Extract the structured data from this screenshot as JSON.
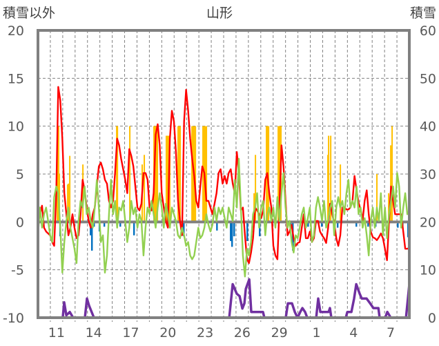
{
  "chart_data": {
    "type": "line",
    "title": "山形",
    "left_axis_label": "積雪以外",
    "right_axis_label": "積雪",
    "ylim_left": [
      -10,
      20
    ],
    "ylim_right": [
      0,
      60
    ],
    "left_ticks": [
      "20",
      "15",
      "10",
      "5",
      "0",
      "-5",
      "-10"
    ],
    "right_ticks": [
      "60",
      "50",
      "40",
      "30",
      "20",
      "10",
      "0"
    ],
    "days": 30,
    "x_tick_labels": [
      {
        "day_index": 1,
        "label": "11"
      },
      {
        "day_index": 4,
        "label": "14"
      },
      {
        "day_index": 7,
        "label": "17"
      },
      {
        "day_index": 10,
        "label": "20"
      },
      {
        "day_index": 13,
        "label": "23"
      },
      {
        "day_index": 16,
        "label": "26"
      },
      {
        "day_index": 19,
        "label": "29"
      },
      {
        "day_index": 22,
        "label": "1"
      },
      {
        "day_index": 25,
        "label": "4"
      },
      {
        "day_index": 28,
        "label": "7"
      }
    ],
    "grid": true,
    "colors": {
      "red": "#ff0000",
      "green": "#92d050",
      "purple": "#7030a0",
      "yellow": "#ffc000",
      "blue": "#0070c0",
      "axis": "#808080"
    },
    "red_series": [
      1.5,
      0.8,
      1.7,
      -0.6,
      -1.0,
      -1.2,
      -1.4,
      -2.1,
      -2.5,
      3.0,
      14.1,
      12.7,
      8.7,
      3.0,
      0.8,
      -1.4,
      -0.6,
      0.8,
      -0.6,
      -1.7,
      -1.4,
      0.8,
      4.4,
      3.3,
      1.5,
      0.1,
      -0.6,
      0.8,
      1.5,
      3.7,
      5.8,
      6.2,
      5.5,
      4.4,
      4.0,
      2.2,
      1.5,
      2.2,
      5.1,
      8.7,
      8.0,
      6.6,
      5.5,
      4.4,
      3.0,
      7.6,
      6.9,
      5.8,
      3.7,
      1.5,
      1.2,
      1.9,
      5.1,
      5.1,
      4.4,
      1.5,
      1.2,
      3.0,
      9.1,
      10.2,
      8.0,
      3.0,
      1.5,
      0.1,
      -0.6,
      8.7,
      11.6,
      10.5,
      7.3,
      2.2,
      0.1,
      -1.4,
      10.5,
      13.8,
      11.6,
      8.7,
      6.6,
      4.8,
      2.2,
      1.5,
      3.7,
      5.8,
      5.1,
      2.2,
      2.2,
      1.5,
      0.8,
      1.9,
      3.0,
      5.1,
      5.5,
      4.0,
      4.8,
      4.0,
      5.1,
      5.5,
      4.0,
      3.0,
      7.3,
      5.1,
      1.2,
      1.5,
      -1.4,
      -3.9,
      -4.3,
      -3.2,
      -1.7,
      1.5,
      1.2,
      0.8,
      0.4,
      1.2,
      4.4,
      5.1,
      3.0,
      1.5,
      -2.5,
      -3.5,
      -3.9,
      1.5,
      8.0,
      5.8,
      2.2,
      -1.4,
      -1.0,
      -0.3,
      -1.7,
      -2.5,
      -2.2,
      -2.1,
      -0.6,
      0.8,
      -1.7,
      -1.7,
      -1.0,
      -2.1,
      -1.7,
      0.1,
      0.1,
      -1.0,
      -1.4,
      -1.7,
      -2.2,
      -0.6,
      1.9,
      0.8,
      -0.1,
      -1.7,
      -2.5,
      -1.4,
      1.5,
      1.5,
      1.3,
      1.3,
      1.5,
      2.2,
      4.8,
      3.3,
      2.0,
      1.3,
      0.2,
      2.2,
      3.3,
      0.8,
      -1.0,
      -1.6,
      -1.7,
      -1.9,
      -1.6,
      -1.2,
      -1.7,
      -2.8,
      -4.0,
      0.1,
      3.7,
      2.2,
      0.8,
      0.8,
      0.8,
      0.8,
      -1.0,
      -2.8,
      -2.8,
      -2.7
    ],
    "green_series": [
      -1.4,
      1.5,
      -0.6,
      0.8,
      1.5,
      0.1,
      -1.4,
      -2.1,
      2.6,
      3.7,
      3.0,
      -0.6,
      -5.3,
      -2.1,
      0.1,
      1.5,
      -0.6,
      -1.7,
      -2.8,
      -4.3,
      0.1,
      2.2,
      1.5,
      3.7,
      0.8,
      1.5,
      0.1,
      -0.6,
      1.5,
      4.4,
      1.5,
      -2.1,
      -1.4,
      -5.3,
      -3.5,
      0.8,
      4.4,
      0.8,
      2.2,
      -0.6,
      1.5,
      1.2,
      2.2,
      0.1,
      -2.1,
      -0.6,
      2.2,
      0.8,
      1.5,
      -0.6,
      0.8,
      0.1,
      -3.5,
      -0.6,
      1.5,
      0.8,
      2.2,
      0.8,
      -0.6,
      1.5,
      3.0,
      1.5,
      -0.6,
      1.9,
      0.8,
      -0.6,
      1.5,
      0.8,
      0.1,
      -1.4,
      -1.7,
      -0.6,
      -1.4,
      -2.5,
      -2.1,
      -3.5,
      -3.9,
      -3.5,
      -2.1,
      -0.6,
      -1.7,
      -1.4,
      -0.6,
      0.8,
      -0.3,
      -1.0,
      -0.3,
      1.5,
      0.1,
      1.5,
      0.8,
      1.5,
      0.4,
      -0.6,
      1.5,
      0.8,
      0.1,
      4.4,
      1.5,
      6.6,
      1.5,
      -3.5,
      -5.7,
      -2.8,
      -3.5,
      -2.1,
      0.8,
      1.5,
      3.0,
      -0.6,
      1.5,
      2.2,
      -1.4,
      0.8,
      1.5,
      0.1,
      1.5,
      -0.6,
      2.6,
      0.1,
      3.0,
      5.1,
      1.5,
      -0.6,
      0.1,
      -2.1,
      -3.2,
      -1.4,
      -1.7,
      -0.6,
      0.8,
      1.5,
      -0.6,
      0.4,
      1.5,
      -2.1,
      -1.4,
      1.5,
      2.6,
      1.5,
      0.1,
      2.2,
      -0.6,
      0.1,
      1.5,
      2.2,
      -1.4,
      1.5,
      2.6,
      1.5,
      2.2,
      0.8,
      3.0,
      4.4,
      1.5,
      2.2,
      1.5,
      3.7,
      0.8,
      1.5,
      -0.6,
      0.4,
      -1.4,
      -3.5,
      0.1,
      1.5,
      -0.6,
      1.5,
      0.1,
      3.0,
      -1.4,
      1.5,
      -1.7,
      0.8,
      2.2,
      3.7,
      1.5,
      5.1,
      3.7,
      -0.6,
      1.5,
      3.0,
      0.8,
      1.2
    ],
    "snow_depth_series": [
      [
        0,
        0
      ],
      [
        2.0,
        0
      ],
      [
        2.12,
        3.2
      ],
      [
        2.29,
        0.5
      ],
      [
        2.57,
        1.2
      ],
      [
        2.84,
        0
      ],
      [
        3.79,
        0
      ],
      [
        3.96,
        4
      ],
      [
        4.13,
        2.5
      ],
      [
        4.52,
        0
      ],
      [
        15.45,
        0
      ],
      [
        15.73,
        7
      ],
      [
        16.06,
        5
      ],
      [
        16.29,
        4.5
      ],
      [
        16.51,
        1.9
      ],
      [
        16.68,
        3
      ],
      [
        16.79,
        6
      ],
      [
        17.07,
        8
      ],
      [
        17.23,
        1.2
      ],
      [
        18.18,
        1.2
      ],
      [
        18.29,
        0
      ],
      [
        20.02,
        0
      ],
      [
        20.19,
        3
      ],
      [
        20.52,
        3
      ],
      [
        20.75,
        1.2
      ],
      [
        20.97,
        0
      ],
      [
        21.19,
        1.2
      ],
      [
        21.36,
        2
      ],
      [
        21.58,
        1.2
      ],
      [
        21.75,
        0
      ],
      [
        22.48,
        0
      ],
      [
        22.64,
        4
      ],
      [
        22.81,
        1.2
      ],
      [
        23.48,
        1.2
      ],
      [
        23.59,
        2
      ],
      [
        23.7,
        0
      ],
      [
        24.87,
        0
      ],
      [
        24.99,
        1.2
      ],
      [
        25.32,
        1.2
      ],
      [
        25.54,
        4
      ],
      [
        25.71,
        7
      ],
      [
        25.99,
        5
      ],
      [
        26.16,
        4
      ],
      [
        26.55,
        4
      ],
      [
        26.83,
        3
      ],
      [
        27.1,
        2
      ],
      [
        27.5,
        2
      ],
      [
        27.6,
        0
      ],
      [
        28.05,
        0
      ],
      [
        28.22,
        1.2
      ],
      [
        28.5,
        0
      ],
      [
        29.73,
        0
      ],
      [
        30,
        7
      ]
    ],
    "yellow_bars": [
      [
        1.56,
        10
      ],
      [
        1.62,
        10
      ],
      [
        1.67,
        10
      ],
      [
        1.73,
        5
      ],
      [
        2.4,
        3.9
      ],
      [
        2.46,
        4
      ],
      [
        2.57,
        6.9
      ],
      [
        3.63,
        6
      ],
      [
        6.36,
        10
      ],
      [
        6.42,
        10
      ],
      [
        7.42,
        10
      ],
      [
        8.42,
        6
      ],
      [
        8.59,
        7
      ],
      [
        9.37,
        10
      ],
      [
        9.43,
        10
      ],
      [
        9.5,
        10
      ],
      [
        9.57,
        10
      ],
      [
        9.65,
        10
      ],
      [
        10.37,
        9
      ],
      [
        10.43,
        9
      ],
      [
        10.5,
        9
      ],
      [
        10.57,
        9
      ],
      [
        10.65,
        9
      ],
      [
        11.32,
        10
      ],
      [
        11.38,
        10
      ],
      [
        11.43,
        10
      ],
      [
        11.49,
        10
      ],
      [
        12.44,
        10
      ],
      [
        12.5,
        10
      ],
      [
        12.56,
        10
      ],
      [
        12.62,
        10
      ],
      [
        12.72,
        10
      ],
      [
        13.33,
        10
      ],
      [
        13.39,
        10
      ],
      [
        13.45,
        10
      ],
      [
        13.52,
        10
      ],
      [
        13.61,
        10
      ],
      [
        17.46,
        3
      ],
      [
        17.57,
        7
      ],
      [
        18.46,
        10
      ],
      [
        18.52,
        10
      ],
      [
        18.57,
        10
      ],
      [
        18.63,
        10
      ],
      [
        19.41,
        10
      ],
      [
        19.47,
        10
      ],
      [
        19.53,
        10
      ],
      [
        19.63,
        10
      ],
      [
        23.42,
        7
      ],
      [
        23.48,
        9
      ],
      [
        23.65,
        9
      ],
      [
        24.43,
        6
      ],
      [
        27.38,
        5
      ],
      [
        28.33,
        3
      ],
      [
        28.5,
        8
      ],
      [
        28.61,
        10
      ]
    ],
    "blue_bars": [
      [
        1.78,
        -1.5
      ],
      [
        4.24,
        -1.4
      ],
      [
        4.35,
        -3
      ],
      [
        4.52,
        -0.5
      ],
      [
        4.96,
        -1
      ],
      [
        5.35,
        -0.5
      ],
      [
        6.64,
        -0.5
      ],
      [
        7.75,
        -1.4
      ],
      [
        11.77,
        -1.5
      ],
      [
        14.45,
        -0.9
      ],
      [
        15.56,
        -2
      ],
      [
        15.67,
        -2.6
      ],
      [
        15.84,
        -1.5
      ],
      [
        16.9,
        -2
      ],
      [
        17.9,
        -1.5
      ],
      [
        20.13,
        -0.5
      ],
      [
        20.41,
        -0.5
      ],
      [
        20.58,
        -3
      ],
      [
        21.81,
        -0.5
      ],
      [
        22.92,
        -0.5
      ],
      [
        24.2,
        -0.6
      ],
      [
        25.71,
        -0.5
      ],
      [
        26.66,
        -0.5
      ],
      [
        27.27,
        -0.5
      ],
      [
        29.06,
        -0.6
      ],
      [
        29.45,
        -0.6
      ],
      [
        29.89,
        -1.6
      ]
    ]
  }
}
